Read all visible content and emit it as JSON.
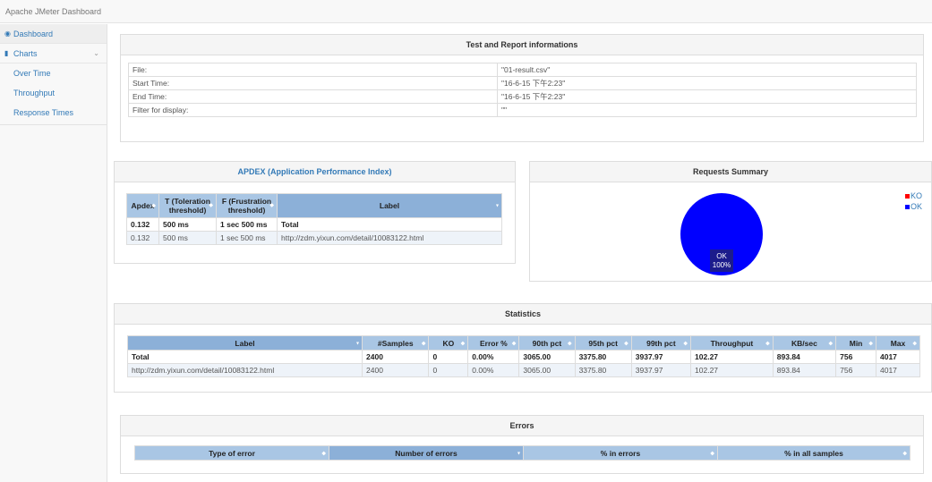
{
  "app": {
    "title": "Apache JMeter Dashboard"
  },
  "sidebar": {
    "dashboard": "Dashboard",
    "charts": "Charts",
    "sub_items": [
      "Over Time",
      "Throughput",
      "Response Times"
    ]
  },
  "report_info": {
    "title": "Test and Report informations",
    "rows": [
      {
        "key": "File:",
        "value": "\"01-result.csv\""
      },
      {
        "key": "Start Time:",
        "value": "\"16-6-15 下午2:23\""
      },
      {
        "key": "End Time:",
        "value": "\"16-6-15 下午2:23\""
      },
      {
        "key": "Filter for display:",
        "value": "\"\""
      }
    ]
  },
  "apdex": {
    "title": "APDEX (Application Performance Index)",
    "headers": [
      "Apdex",
      "T (Toleration threshold)",
      "F (Frustration threshold)",
      "Label"
    ],
    "rows": [
      [
        "0.132",
        "500 ms",
        "1 sec 500 ms",
        "Total"
      ],
      [
        "0.132",
        "500 ms",
        "1 sec 500 ms",
        "http://zdm.yixun.com/detail/10083122.html"
      ]
    ]
  },
  "requests_summary": {
    "title": "Requests Summary",
    "legend": [
      {
        "label": "KO",
        "color": "#ff0000"
      },
      {
        "label": "OK",
        "color": "#0000ff"
      }
    ],
    "pie_label": "OK",
    "pie_pct": "100%"
  },
  "chart_data": {
    "type": "pie",
    "title": "Requests Summary",
    "categories": [
      "KO",
      "OK"
    ],
    "values": [
      0,
      100
    ]
  },
  "statistics": {
    "title": "Statistics",
    "headers": [
      "Label",
      "#Samples",
      "KO",
      "Error %",
      "90th pct",
      "95th pct",
      "99th pct",
      "Throughput",
      "KB/sec",
      "Min",
      "Max"
    ],
    "rows": [
      [
        "Total",
        "2400",
        "0",
        "0.00%",
        "3065.00",
        "3375.80",
        "3937.97",
        "102.27",
        "893.84",
        "756",
        "4017"
      ],
      [
        "http://zdm.yixun.com/detail/10083122.html",
        "2400",
        "0",
        "0.00%",
        "3065.00",
        "3375.80",
        "3937.97",
        "102.27",
        "893.84",
        "756",
        "4017"
      ]
    ]
  },
  "errors": {
    "title": "Errors",
    "headers": [
      "Type of error",
      "Number of errors",
      "% in errors",
      "% in all samples"
    ]
  }
}
